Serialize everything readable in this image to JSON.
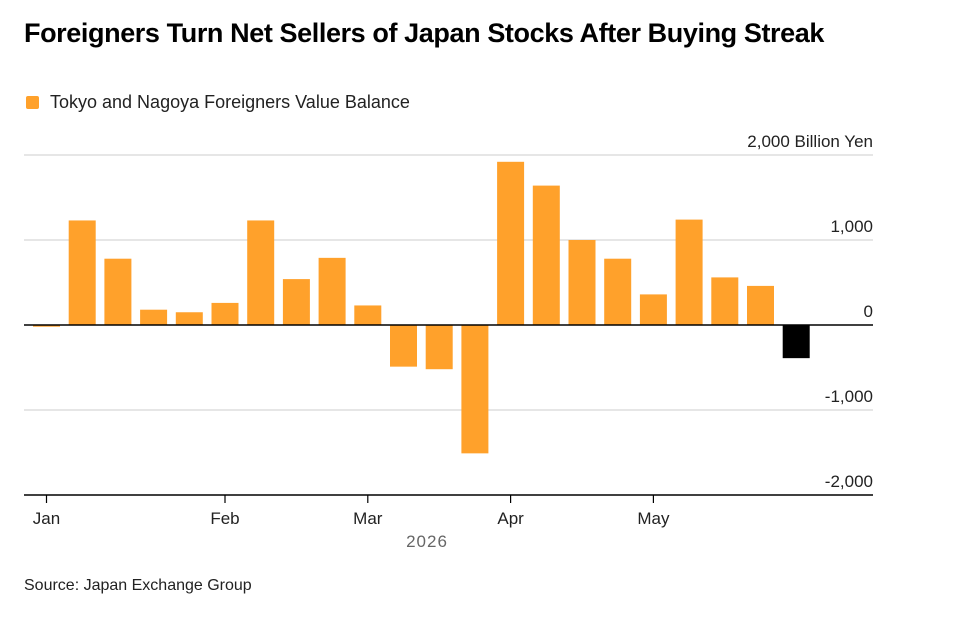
{
  "title": "Foreigners Turn Net Sellers of Japan Stocks After Buying Streak",
  "legend": {
    "label": "Tokyo and Nagoya Foreigners Value Balance",
    "color": "#FFA12B"
  },
  "source": "Source: Japan Exchange Group",
  "chart_data": {
    "type": "bar",
    "unit": "Billion Yen",
    "year_label": "2026",
    "ylim": [
      -2000,
      2000
    ],
    "y_ticks": [
      {
        "value": 2000,
        "label": "2,000 Billion Yen"
      },
      {
        "value": 1000,
        "label": "1,000"
      },
      {
        "value": 0,
        "label": "0"
      },
      {
        "value": -1000,
        "label": "-1,000"
      },
      {
        "value": -2000,
        "label": "-2,000"
      }
    ],
    "x_ticks": [
      {
        "label": "Jan",
        "index": 0
      },
      {
        "label": "Feb",
        "index": 5
      },
      {
        "label": "Mar",
        "index": 9
      },
      {
        "label": "Apr",
        "index": 13
      },
      {
        "label": "May",
        "index": 17
      }
    ],
    "grid": true,
    "legend_position": "top-left",
    "bar_color": "#FFA12B",
    "highlight_color": "#000000",
    "highlight_index": 21,
    "values": [
      -20,
      1230,
      780,
      180,
      150,
      260,
      1230,
      540,
      790,
      230,
      -490,
      -520,
      -1510,
      1920,
      1640,
      1000,
      780,
      360,
      1240,
      560,
      460,
      -390
    ]
  }
}
